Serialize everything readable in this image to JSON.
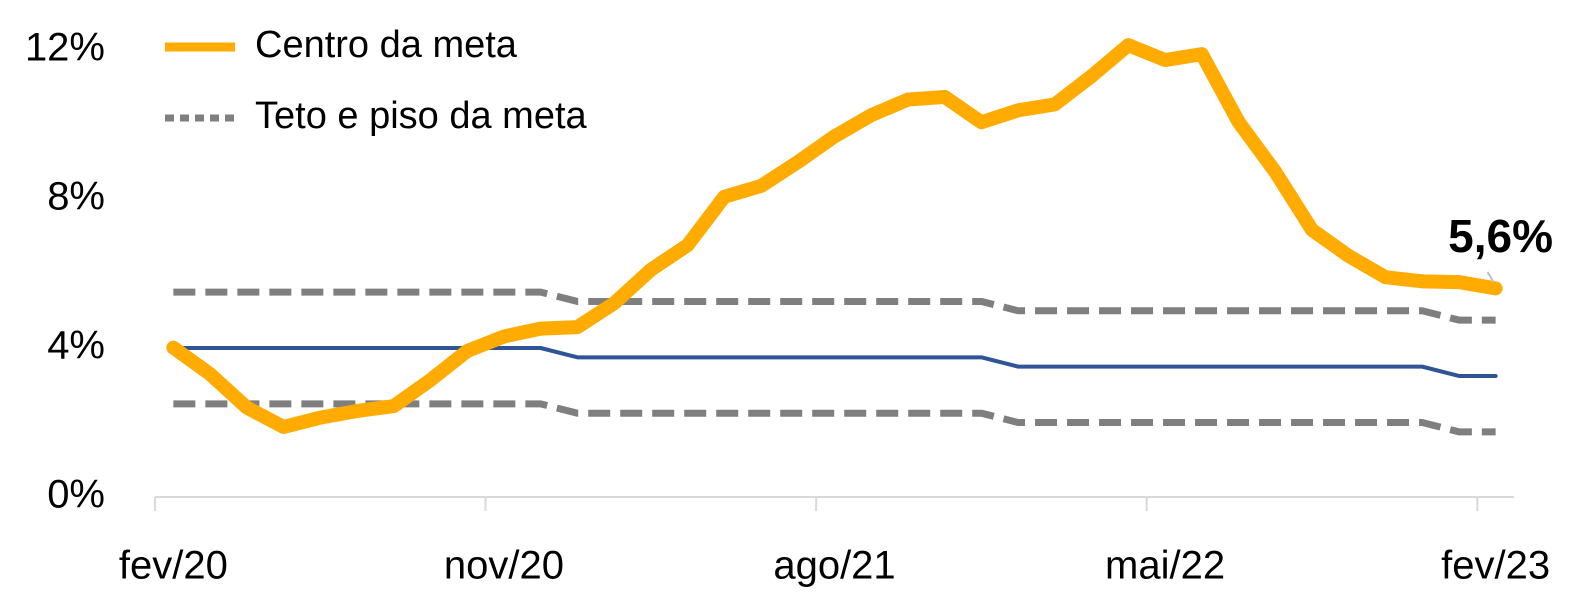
{
  "chart_data": {
    "type": "line",
    "categories": [
      "fev/20",
      null,
      null,
      null,
      null,
      null,
      null,
      null,
      null,
      "nov/20",
      null,
      null,
      null,
      null,
      null,
      null,
      null,
      null,
      "ago/21",
      null,
      null,
      null,
      null,
      null,
      null,
      null,
      null,
      "mai/22",
      null,
      null,
      null,
      null,
      null,
      null,
      null,
      null,
      "fev/23"
    ],
    "series": [
      {
        "name": "Teto e piso da meta",
        "color": "#7f7f7f",
        "dash": true,
        "width": 7,
        "values": [
          5.5,
          5.5,
          5.5,
          5.5,
          5.5,
          5.5,
          5.5,
          5.5,
          5.5,
          5.5,
          5.5,
          5.25,
          5.25,
          5.25,
          5.25,
          5.25,
          5.25,
          5.25,
          5.25,
          5.25,
          5.25,
          5.25,
          5.25,
          5.0,
          5.0,
          5.0,
          5.0,
          5.0,
          5.0,
          5.0,
          5.0,
          5.0,
          5.0,
          5.0,
          5.0,
          4.75,
          4.75
        ]
      },
      {
        "color": "#7f7f7f",
        "dash": true,
        "width": 7,
        "values": [
          2.5,
          2.5,
          2.5,
          2.5,
          2.5,
          2.5,
          2.5,
          2.5,
          2.5,
          2.5,
          2.5,
          2.25,
          2.25,
          2.25,
          2.25,
          2.25,
          2.25,
          2.25,
          2.25,
          2.25,
          2.25,
          2.25,
          2.25,
          2.0,
          2.0,
          2.0,
          2.0,
          2.0,
          2.0,
          2.0,
          2.0,
          2.0,
          2.0,
          2.0,
          2.0,
          1.75,
          1.75
        ]
      },
      {
        "color": "#2f5597",
        "dash": false,
        "width": 4,
        "values": [
          4.0,
          4.0,
          4.0,
          4.0,
          4.0,
          4.0,
          4.0,
          4.0,
          4.0,
          4.0,
          4.0,
          3.75,
          3.75,
          3.75,
          3.75,
          3.75,
          3.75,
          3.75,
          3.75,
          3.75,
          3.75,
          3.75,
          3.75,
          3.5,
          3.5,
          3.5,
          3.5,
          3.5,
          3.5,
          3.5,
          3.5,
          3.5,
          3.5,
          3.5,
          3.5,
          3.25,
          3.25
        ]
      },
      {
        "name": "Centro da meta",
        "color": "#ffab00",
        "dash": false,
        "width": 14,
        "values": [
          4.01,
          3.3,
          2.4,
          1.88,
          2.13,
          2.31,
          2.44,
          3.14,
          3.92,
          4.31,
          4.52,
          4.56,
          5.2,
          6.1,
          6.76,
          8.06,
          8.35,
          8.99,
          9.68,
          10.25,
          10.67,
          10.74,
          10.06,
          10.38,
          10.54,
          11.3,
          12.13,
          11.73,
          11.89,
          10.07,
          8.73,
          7.17,
          6.47,
          5.9,
          5.79,
          5.77,
          5.6
        ]
      }
    ],
    "legend_order": [
      3,
      0
    ],
    "annotation": "5,6%",
    "ylim": [
      0,
      12
    ],
    "yticks": [
      {
        "value": 0,
        "label": "0%"
      },
      {
        "value": 4,
        "label": "4%"
      },
      {
        "value": 8,
        "label": "8%"
      },
      {
        "value": 12,
        "label": "12%"
      }
    ],
    "grid": false
  }
}
